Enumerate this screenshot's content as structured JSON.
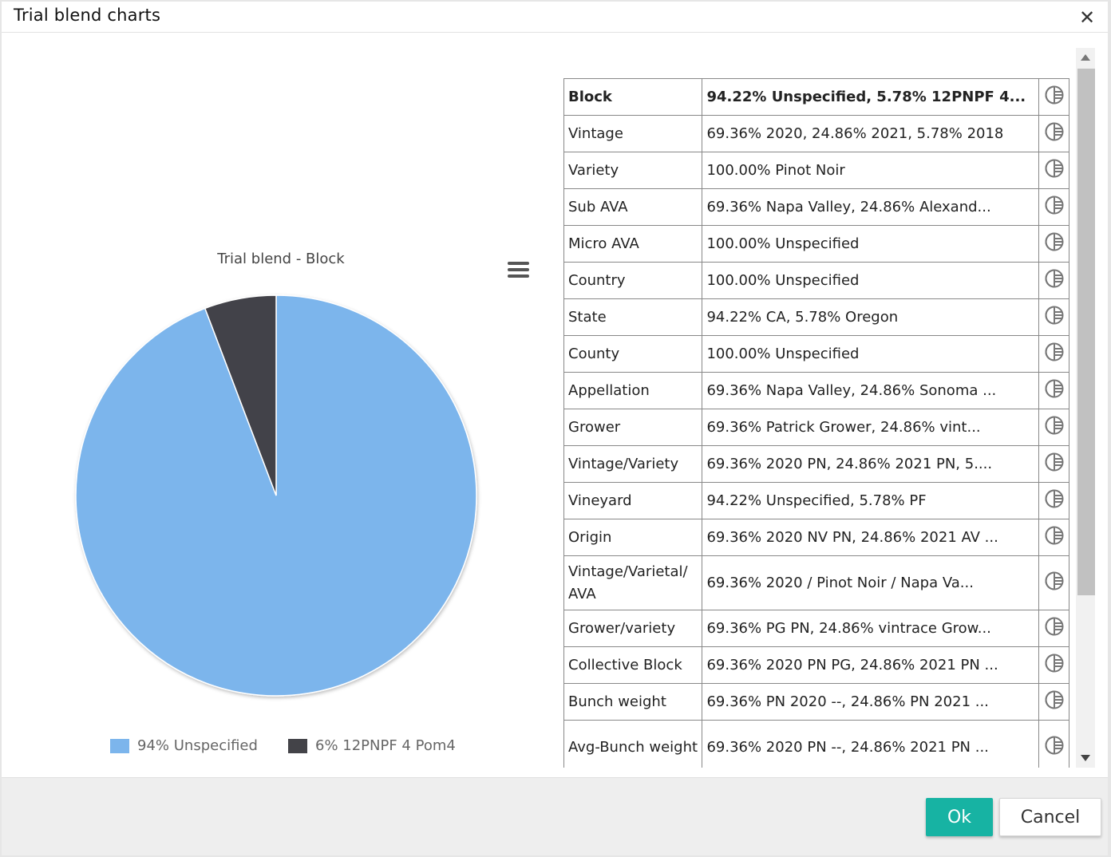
{
  "dialog": {
    "title": "Trial blend charts",
    "close_icon": "close-icon"
  },
  "chart_data": {
    "type": "pie",
    "title": "Trial blend - Block",
    "series": [
      {
        "name": "94% Unspecified",
        "value": 94.22,
        "color": "#7cb5ec"
      },
      {
        "name": "6% 12PNPF 4 Pom4",
        "value": 5.78,
        "color": "#434348"
      }
    ],
    "legend": "bottom"
  },
  "chart_menu_icon": "hamburger-menu-icon",
  "table": {
    "row_icon": "pie-chart-icon",
    "rows": [
      {
        "label": "Block",
        "value": "94.22% Unspecified, 5.78% 12PNPF 4...",
        "header": true
      },
      {
        "label": "Vintage",
        "value": "69.36% 2020, 24.86% 2021, 5.78% 2018"
      },
      {
        "label": "Variety",
        "value": "100.00% Pinot Noir"
      },
      {
        "label": "Sub AVA",
        "value": "69.36% Napa Valley, 24.86% Alexand..."
      },
      {
        "label": "Micro AVA",
        "value": "100.00% Unspecified"
      },
      {
        "label": "Country",
        "value": "100.00% Unspecified"
      },
      {
        "label": "State",
        "value": "94.22% CA, 5.78% Oregon"
      },
      {
        "label": "County",
        "value": "100.00% Unspecified"
      },
      {
        "label": "Appellation",
        "value": "69.36% Napa Valley, 24.86% Sonoma ..."
      },
      {
        "label": "Grower",
        "value": "69.36% Patrick Grower, 24.86% vint..."
      },
      {
        "label": "Vintage/Variety",
        "value": "69.36% 2020 PN, 24.86% 2021 PN, 5...."
      },
      {
        "label": "Vineyard",
        "value": "94.22% Unspecified, 5.78% PF"
      },
      {
        "label": "Origin",
        "value": "69.36% 2020 NV PN, 24.86% 2021 AV ..."
      },
      {
        "label": "Vintage/Varietal/ AVA",
        "value": "69.36% 2020 / Pinot Noir / Napa Va...",
        "two_line": true
      },
      {
        "label": "Grower/variety",
        "value": "69.36% PG PN, 24.86% vintrace Grow..."
      },
      {
        "label": "Collective Block",
        "value": "69.36% 2020 PN PG, 24.86% 2021 PN ..."
      },
      {
        "label": "Bunch weight",
        "value": "69.36% PN 2020 --, 24.86% PN 2021 ..."
      },
      {
        "label": "Avg-Bunch weight",
        "value": "69.36% 2020 PN --, 24.86% 2021 PN ...",
        "two_line": true
      }
    ]
  },
  "footer": {
    "ok_label": "Ok",
    "cancel_label": "Cancel",
    "ok_color": "#17b3a3"
  }
}
